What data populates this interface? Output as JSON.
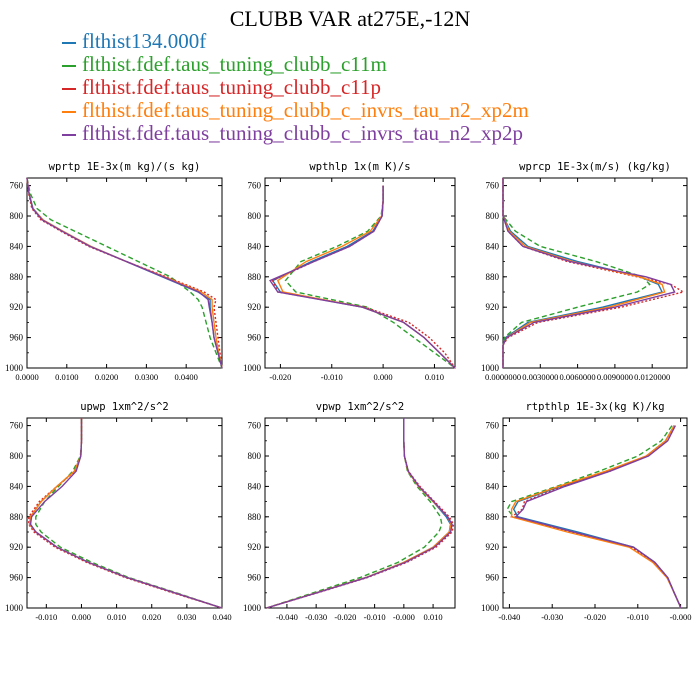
{
  "title": "CLUBB VAR at275E,-12N",
  "legend": [
    {
      "label": "flthist134.000f",
      "color": "#1f77b4",
      "dash": "solid"
    },
    {
      "label": "flthist.fdef.taus_tuning_clubb_c11m",
      "color": "#2ca02c",
      "dash": "dashed"
    },
    {
      "label": "flthist.fdef.taus_tuning_clubb_c11p",
      "color": "#d62728",
      "dash": "dotted"
    },
    {
      "label": "flthist.fdef.taus_tuning_clubb_c_invrs_tau_n2_xp2m",
      "color": "#ff7f0e",
      "dash": "solid"
    },
    {
      "label": "flthist.fdef.taus_tuning_clubb_c_invrs_tau_n2_xp2p",
      "color": "#7f3f9f",
      "dash": "solid"
    }
  ],
  "chart_data": [
    {
      "type": "line",
      "title": "wprtp  1E-3x(m kg)/(s kg)",
      "xlim": [
        0.0,
        0.049
      ],
      "ylim": [
        1000,
        750
      ],
      "xticks": [
        0.0,
        0.01,
        0.02,
        0.03,
        0.04
      ],
      "xticklabels": [
        "0.0000",
        "0.0100",
        "0.0200",
        "0.0300",
        "0.0400"
      ],
      "yticks": [
        760,
        800,
        840,
        880,
        920,
        960,
        1000
      ],
      "yticklabels": [
        "760",
        "800",
        "840",
        "880",
        "920",
        "960",
        "1000"
      ],
      "y": [
        750,
        770,
        790,
        805,
        820,
        840,
        860,
        880,
        900,
        910,
        920,
        940,
        960,
        980,
        1000
      ],
      "series": [
        {
          "name": "flthist134.000f",
          "x": [
            0.0,
            0.0005,
            0.0015,
            0.004,
            0.009,
            0.016,
            0.025,
            0.034,
            0.043,
            0.046,
            0.046,
            0.0465,
            0.047,
            0.048,
            0.049
          ]
        },
        {
          "name": "flthist.fdef.taus_tuning_clubb_c11m",
          "x": [
            0.0,
            0.0008,
            0.0025,
            0.006,
            0.012,
            0.02,
            0.028,
            0.036,
            0.041,
            0.043,
            0.044,
            0.045,
            0.046,
            0.0475,
            0.049
          ]
        },
        {
          "name": "flthist.fdef.taus_tuning_clubb_c11p",
          "x": [
            0.0,
            0.0004,
            0.0012,
            0.0035,
            0.0085,
            0.0155,
            0.025,
            0.035,
            0.0445,
            0.0475,
            0.047,
            0.0475,
            0.048,
            0.0485,
            0.049
          ]
        },
        {
          "name": "flthist.fdef.taus_tuning_clubb_c_invrs_tau_n2_xp2m",
          "x": [
            0.0,
            0.0005,
            0.0014,
            0.004,
            0.009,
            0.016,
            0.025,
            0.0345,
            0.0438,
            0.0465,
            0.0465,
            0.047,
            0.0475,
            0.0482,
            0.049
          ]
        },
        {
          "name": "flthist.fdef.taus_tuning_clubb_c_invrs_tau_n2_xp2p",
          "x": [
            0.0,
            0.0005,
            0.0014,
            0.0038,
            0.0088,
            0.0158,
            0.025,
            0.0342,
            0.0432,
            0.0455,
            0.0458,
            0.0465,
            0.047,
            0.048,
            0.049
          ]
        }
      ]
    },
    {
      "type": "line",
      "title": "wpthlp  1x(m K)/s",
      "xlim": [
        -0.023,
        0.014
      ],
      "ylim": [
        1000,
        750
      ],
      "xticks": [
        -0.02,
        -0.01,
        0.0,
        0.01
      ],
      "xticklabels": [
        "-0.020",
        "-0.010",
        "0.000",
        "0.010"
      ],
      "yticks": [
        760,
        800,
        840,
        880,
        920,
        960,
        1000
      ],
      "yticklabels": [
        "760",
        "800",
        "840",
        "880",
        "920",
        "960",
        "1000"
      ],
      "y": [
        760,
        780,
        800,
        820,
        840,
        860,
        885,
        900,
        920,
        940,
        960,
        980,
        1000
      ],
      "series": [
        {
          "name": "flthist134.000f",
          "x": [
            0.0,
            0.0,
            -0.0002,
            -0.002,
            -0.007,
            -0.014,
            -0.0215,
            -0.02,
            -0.004,
            0.004,
            0.008,
            0.011,
            0.014
          ]
        },
        {
          "name": "flthist.fdef.taus_tuning_clubb_c11m",
          "x": [
            0.0,
            0.0,
            -0.0004,
            -0.003,
            -0.009,
            -0.016,
            -0.019,
            -0.017,
            -0.003,
            0.002,
            0.006,
            0.01,
            0.014
          ]
        },
        {
          "name": "flthist.fdef.taus_tuning_clubb_c11p",
          "x": [
            0.0,
            0.0,
            -0.0002,
            -0.0018,
            -0.0065,
            -0.0135,
            -0.0215,
            -0.0205,
            -0.0035,
            0.005,
            0.009,
            0.012,
            0.014
          ]
        },
        {
          "name": "flthist.fdef.taus_tuning_clubb_c_invrs_tau_n2_xp2m",
          "x": [
            0.0,
            0.0,
            -0.0003,
            -0.0025,
            -0.008,
            -0.015,
            -0.0205,
            -0.0195,
            -0.004,
            0.004,
            0.008,
            0.011,
            0.014
          ]
        },
        {
          "name": "flthist.fdef.taus_tuning_clubb_c_invrs_tau_n2_xp2p",
          "x": [
            0.0,
            0.0,
            -0.0002,
            -0.0018,
            -0.0065,
            -0.0135,
            -0.022,
            -0.0205,
            -0.004,
            0.004,
            0.008,
            0.011,
            0.014
          ]
        }
      ]
    },
    {
      "type": "line",
      "title": "wprcp  1E-3x(m/s) (kg/kg)",
      "xlim": [
        0.0,
        0.0148
      ],
      "ylim": [
        1000,
        750
      ],
      "xticks": [
        0.0,
        0.003,
        0.006,
        0.009,
        0.012
      ],
      "xticklabels": [
        "0.0000000",
        "0.0030000",
        "0.0060000",
        "0.0090000",
        "0.0120000"
      ],
      "yticks": [
        760,
        800,
        840,
        880,
        920,
        960,
        1000
      ],
      "yticklabels": [
        "760",
        "800",
        "840",
        "880",
        "920",
        "960",
        "1000"
      ],
      "y": [
        750,
        780,
        800,
        820,
        840,
        860,
        880,
        890,
        900,
        920,
        940,
        960,
        970,
        980,
        1000
      ],
      "series": [
        {
          "name": "flthist134.000f",
          "x": [
            0.0,
            0.0,
            0.0,
            0.0006,
            0.002,
            0.006,
            0.011,
            0.0125,
            0.0128,
            0.008,
            0.002,
            0.0002,
            0.0,
            0.0,
            0.0
          ]
        },
        {
          "name": "flthist.fdef.taus_tuning_clubb_c11m",
          "x": [
            0.0,
            0.0,
            0.0,
            0.001,
            0.003,
            0.0075,
            0.0112,
            0.0118,
            0.0108,
            0.006,
            0.0015,
            0.0001,
            0.0,
            0.0,
            0.0
          ]
        },
        {
          "name": "flthist.fdef.taus_tuning_clubb_c11p",
          "x": [
            0.0,
            0.0,
            0.0,
            0.0004,
            0.0016,
            0.0052,
            0.0108,
            0.0135,
            0.0145,
            0.0095,
            0.0028,
            0.0004,
            0.0,
            0.0,
            0.0
          ]
        },
        {
          "name": "flthist.fdef.taus_tuning_clubb_c_invrs_tau_n2_xp2m",
          "x": [
            0.0,
            0.0,
            0.0,
            0.0005,
            0.0018,
            0.0056,
            0.011,
            0.0128,
            0.013,
            0.0085,
            0.0022,
            0.0003,
            0.0,
            0.0,
            0.0
          ]
        },
        {
          "name": "flthist.fdef.taus_tuning_clubb_c_invrs_tau_n2_xp2p",
          "x": [
            0.0,
            0.0,
            0.0,
            0.0004,
            0.0016,
            0.0054,
            0.0115,
            0.0135,
            0.0138,
            0.009,
            0.0025,
            0.0003,
            0.0,
            0.0,
            0.0
          ]
        }
      ]
    },
    {
      "type": "line",
      "title": "upwp  1xm^2/s^2",
      "xlim": [
        -0.0155,
        0.04
      ],
      "ylim": [
        1000,
        750
      ],
      "xticks": [
        -0.01,
        0.0,
        0.01,
        0.02,
        0.03,
        0.04
      ],
      "xticklabels": [
        "-0.010",
        "0.000",
        "0.010",
        "0.020",
        "0.030",
        "0.040"
      ],
      "yticks": [
        760,
        800,
        840,
        880,
        920,
        960,
        1000
      ],
      "yticklabels": [
        "760",
        "800",
        "840",
        "880",
        "920",
        "960",
        "1000"
      ],
      "y": [
        750,
        780,
        800,
        820,
        840,
        860,
        880,
        890,
        900,
        920,
        940,
        960,
        980,
        1000
      ],
      "series": [
        {
          "name": "flthist134.000f",
          "x": [
            0.0,
            0.0,
            -0.0002,
            -0.002,
            -0.007,
            -0.0115,
            -0.0145,
            -0.0145,
            -0.013,
            -0.007,
            0.002,
            0.013,
            0.0265,
            0.04
          ]
        },
        {
          "name": "flthist.fdef.taus_tuning_clubb_c11m",
          "x": [
            0.0,
            0.0,
            -0.0003,
            -0.0025,
            -0.0065,
            -0.0105,
            -0.013,
            -0.013,
            -0.0115,
            -0.006,
            0.003,
            0.0135,
            0.027,
            0.04
          ]
        },
        {
          "name": "flthist.fdef.taus_tuning_clubb_c11p",
          "x": [
            0.0,
            0.0,
            -0.0002,
            -0.0018,
            -0.007,
            -0.012,
            -0.015,
            -0.015,
            -0.0135,
            -0.0075,
            0.0015,
            0.0125,
            0.026,
            0.04
          ]
        },
        {
          "name": "flthist.fdef.taus_tuning_clubb_c_invrs_tau_n2_xp2m",
          "x": [
            0.0,
            0.0,
            -0.0002,
            -0.002,
            -0.007,
            -0.0115,
            -0.0145,
            -0.0148,
            -0.013,
            -0.007,
            0.002,
            0.013,
            0.0265,
            0.04
          ]
        },
        {
          "name": "flthist.fdef.taus_tuning_clubb_c_invrs_tau_n2_xp2p",
          "x": [
            0.0,
            0.0,
            -0.0002,
            -0.0015,
            -0.0055,
            -0.0105,
            -0.0142,
            -0.0145,
            -0.013,
            -0.007,
            0.002,
            0.013,
            0.0265,
            0.04
          ]
        }
      ]
    },
    {
      "type": "line",
      "title": "vpwp  1xm^2/s^2",
      "xlim": [
        -0.0475,
        0.0175
      ],
      "ylim": [
        1000,
        750
      ],
      "xticks": [
        -0.04,
        -0.03,
        -0.02,
        -0.01,
        0.0,
        0.01
      ],
      "xticklabels": [
        "-0.040",
        "-0.030",
        "-0.020",
        "-0.010",
        "-0.000",
        "0.010"
      ],
      "yticks": [
        760,
        800,
        840,
        880,
        920,
        960,
        1000
      ],
      "yticklabels": [
        "760",
        "800",
        "840",
        "880",
        "920",
        "960",
        "1000"
      ],
      "y": [
        750,
        780,
        800,
        820,
        840,
        860,
        880,
        890,
        900,
        920,
        940,
        960,
        980,
        1000
      ],
      "series": [
        {
          "name": "flthist134.000f",
          "x": [
            0.0,
            0.0,
            0.0002,
            0.0015,
            0.005,
            0.01,
            0.0145,
            0.016,
            0.0155,
            0.01,
            0.0,
            -0.013,
            -0.03,
            -0.047
          ]
        },
        {
          "name": "flthist.fdef.taus_tuning_clubb_c11m",
          "x": [
            0.0,
            0.0,
            0.0002,
            0.0012,
            0.0045,
            0.009,
            0.0125,
            0.013,
            0.012,
            0.007,
            -0.002,
            -0.015,
            -0.031,
            -0.047
          ]
        },
        {
          "name": "flthist.fdef.taus_tuning_clubb_c11p",
          "x": [
            0.0,
            0.0,
            0.0002,
            0.0016,
            0.0055,
            0.0105,
            0.0155,
            0.017,
            0.0165,
            0.011,
            0.001,
            -0.0125,
            -0.0295,
            -0.047
          ]
        },
        {
          "name": "flthist.fdef.taus_tuning_clubb_c_invrs_tau_n2_xp2m",
          "x": [
            0.0,
            0.0,
            0.0002,
            0.0014,
            0.005,
            0.01,
            0.015,
            0.0162,
            0.0155,
            0.01,
            0.0,
            -0.013,
            -0.03,
            -0.047
          ]
        },
        {
          "name": "flthist.fdef.taus_tuning_clubb_c_invrs_tau_n2_xp2p",
          "x": [
            0.0,
            0.0,
            0.0002,
            0.0015,
            0.0052,
            0.0102,
            0.015,
            0.0165,
            0.016,
            0.0105,
            0.0005,
            -0.0128,
            -0.0298,
            -0.047
          ]
        }
      ]
    },
    {
      "type": "line",
      "title": "rtpthlp  1E-3x(kg K)/kg",
      "xlim": [
        -0.0415,
        0.0015
      ],
      "ylim": [
        1000,
        750
      ],
      "xticks": [
        -0.04,
        -0.03,
        -0.02,
        -0.01,
        0.0
      ],
      "xticklabels": [
        "-0.040",
        "-0.030",
        "-0.020",
        "-0.010",
        "-0.000"
      ],
      "yticks": [
        760,
        800,
        840,
        880,
        920,
        960,
        1000
      ],
      "yticklabels": [
        "760",
        "800",
        "840",
        "880",
        "920",
        "960",
        "1000"
      ],
      "y": [
        760,
        780,
        800,
        820,
        840,
        860,
        870,
        880,
        900,
        920,
        940,
        960,
        980,
        995,
        1000
      ],
      "series": [
        {
          "name": "flthist134.000f",
          "x": [
            -0.0015,
            -0.0035,
            -0.008,
            -0.017,
            -0.028,
            -0.038,
            -0.039,
            -0.038,
            -0.024,
            -0.011,
            -0.006,
            -0.003,
            -0.0015,
            -0.0003,
            0.0
          ]
        },
        {
          "name": "flthist.fdef.taus_tuning_clubb_c11m",
          "x": [
            -0.002,
            -0.0045,
            -0.01,
            -0.019,
            -0.029,
            -0.0395,
            -0.0405,
            -0.039,
            -0.025,
            -0.011,
            -0.006,
            -0.003,
            -0.0015,
            -0.0003,
            0.0
          ]
        },
        {
          "name": "flthist.fdef.taus_tuning_clubb_c11p",
          "x": [
            -0.0015,
            -0.0035,
            -0.008,
            -0.0165,
            -0.0275,
            -0.0365,
            -0.037,
            -0.0395,
            -0.0255,
            -0.0115,
            -0.0062,
            -0.003,
            -0.0015,
            -0.0003,
            0.0
          ]
        },
        {
          "name": "flthist.fdef.taus_tuning_clubb_c_invrs_tau_n2_xp2m",
          "x": [
            -0.0015,
            -0.0035,
            -0.008,
            -0.0175,
            -0.0285,
            -0.0385,
            -0.0395,
            -0.0395,
            -0.0265,
            -0.012,
            -0.0065,
            -0.0032,
            -0.0015,
            -0.0003,
            0.0
          ]
        },
        {
          "name": "flthist.fdef.taus_tuning_clubb_c_invrs_tau_n2_xp2p",
          "x": [
            -0.0012,
            -0.003,
            -0.0075,
            -0.0165,
            -0.027,
            -0.036,
            -0.0368,
            -0.0385,
            -0.025,
            -0.011,
            -0.006,
            -0.003,
            -0.0015,
            -0.0003,
            0.0
          ]
        }
      ]
    }
  ]
}
